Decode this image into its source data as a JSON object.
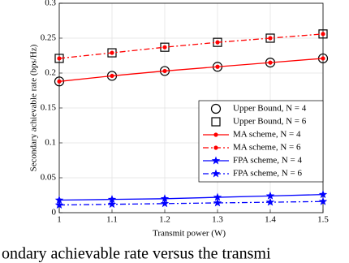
{
  "chart_data": {
    "type": "line",
    "x_label": "Transmit power (W)",
    "y_label": "Secondary achievable rate (bps/Hz)",
    "x": [
      1,
      1.1,
      1.2,
      1.3,
      1.4,
      1.5
    ],
    "xlim": [
      1,
      1.5
    ],
    "xticks": [
      1,
      1.1,
      1.2,
      1.3,
      1.4,
      1.5
    ],
    "ylim": [
      0,
      0.3
    ],
    "yticks": [
      0,
      0.05,
      0.1,
      0.15,
      0.2,
      0.25,
      0.3
    ],
    "grid": true,
    "legend": "lower right",
    "series": [
      {
        "name": "Upper Bound, N = 4",
        "color": "#000000",
        "marker": "circle",
        "line": "none",
        "values": [
          0.188,
          0.196,
          0.203,
          0.209,
          0.215,
          0.221
        ]
      },
      {
        "name": "Upper Bound, N = 6",
        "color": "#000000",
        "marker": "square",
        "line": "none",
        "values": [
          0.221,
          0.229,
          0.237,
          0.244,
          0.25,
          0.256
        ]
      },
      {
        "name": "MA scheme, N = 4",
        "color": "#ff0000",
        "marker": "dot",
        "line": "solid",
        "values": [
          0.188,
          0.196,
          0.203,
          0.209,
          0.215,
          0.221
        ]
      },
      {
        "name": "MA scheme, N = 6",
        "color": "#ff0000",
        "marker": "dot",
        "line": "dashdot",
        "values": [
          0.221,
          0.229,
          0.237,
          0.244,
          0.25,
          0.256
        ]
      },
      {
        "name": "FPA scheme, N = 4",
        "color": "#0000ff",
        "marker": "star",
        "line": "solid",
        "values": [
          0.018,
          0.019,
          0.02,
          0.022,
          0.024,
          0.026
        ]
      },
      {
        "name": "FPA scheme, N = 6",
        "color": "#0000ff",
        "marker": "star",
        "line": "dashdot",
        "values": [
          0.011,
          0.012,
          0.013,
          0.014,
          0.015,
          0.016
        ]
      }
    ]
  },
  "caption": "ondary achievable rate versus the transmi"
}
